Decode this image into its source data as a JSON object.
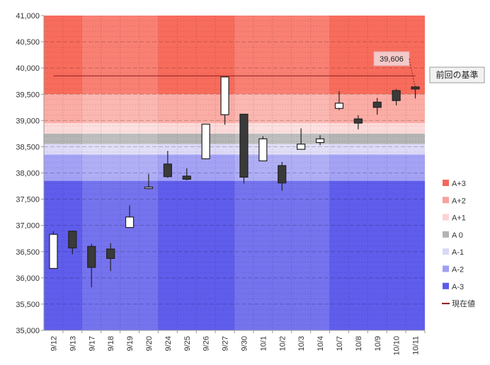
{
  "chart_data": {
    "type": "candlestick",
    "ylim": [
      35000,
      41000
    ],
    "y_ticks": [
      "35,000",
      "35,500",
      "36,000",
      "36,500",
      "37,000",
      "37,500",
      "38,000",
      "38,500",
      "39,000",
      "39,500",
      "40,000",
      "40,500",
      "41,000"
    ],
    "categories": [
      "9/12",
      "9/13",
      "9/17",
      "9/18",
      "9/19",
      "9/20",
      "9/24",
      "9/25",
      "9/26",
      "9/27",
      "9/30",
      "10/1",
      "10/2",
      "10/3",
      "10/4",
      "10/7",
      "10/8",
      "10/9",
      "10/10",
      "10/11"
    ],
    "candles": [
      {
        "open": 36180,
        "high": 36890,
        "low": 36180,
        "close": 36830
      },
      {
        "open": 36890,
        "high": 36890,
        "low": 36450,
        "close": 36570
      },
      {
        "open": 36600,
        "high": 36650,
        "low": 35820,
        "close": 36200
      },
      {
        "open": 36550,
        "high": 36660,
        "low": 36130,
        "close": 36370
      },
      {
        "open": 36960,
        "high": 37380,
        "low": 36960,
        "close": 37160
      },
      {
        "open": 37710,
        "high": 37980,
        "low": 37690,
        "close": 37730
      },
      {
        "open": 38170,
        "high": 38420,
        "low": 37910,
        "close": 37930
      },
      {
        "open": 37940,
        "high": 38090,
        "low": 37860,
        "close": 37880
      },
      {
        "open": 38270,
        "high": 38930,
        "low": 38260,
        "close": 38930
      },
      {
        "open": 39110,
        "high": 39830,
        "low": 38920,
        "close": 39830
      },
      {
        "open": 39120,
        "high": 39120,
        "low": 37800,
        "close": 37920
      },
      {
        "open": 38230,
        "high": 38700,
        "low": 38230,
        "close": 38650
      },
      {
        "open": 38140,
        "high": 38210,
        "low": 37660,
        "close": 37810
      },
      {
        "open": 38450,
        "high": 38850,
        "low": 38450,
        "close": 38550
      },
      {
        "open": 38580,
        "high": 38720,
        "low": 38530,
        "close": 38650
      },
      {
        "open": 39230,
        "high": 39560,
        "low": 39200,
        "close": 39330
      },
      {
        "open": 39030,
        "high": 39100,
        "low": 38830,
        "close": 38950
      },
      {
        "open": 39350,
        "high": 39430,
        "low": 39110,
        "close": 39250
      },
      {
        "open": 39570,
        "high": 39600,
        "low": 39290,
        "close": 39380
      },
      {
        "open": 39640,
        "high": 39660,
        "low": 39420,
        "close": 39600
      }
    ],
    "zones": [
      {
        "name": "A+3",
        "from": 39500,
        "to": 41000,
        "color": "#F86C5C"
      },
      {
        "name": "A+2",
        "from": 38950,
        "to": 39500,
        "color": "#FBACA5"
      },
      {
        "name": "A+1",
        "from": 38750,
        "to": 38950,
        "color": "#FDDADA"
      },
      {
        "name": "A 0",
        "from": 38550,
        "to": 38750,
        "color": "#B5B5B5"
      },
      {
        "name": "A-1",
        "from": 38350,
        "to": 38550,
        "color": "#DCDAF7"
      },
      {
        "name": "A-2",
        "from": 37850,
        "to": 38350,
        "color": "#A3A2F5"
      },
      {
        "name": "A-3",
        "from": 35000,
        "to": 37850,
        "color": "#5F5DEC"
      }
    ],
    "current_value_line": {
      "value": 39850,
      "color": "#8B1A1A"
    },
    "callout": {
      "text": "39,606",
      "value": 39606
    },
    "reference_label": "前回の基準",
    "legend": [
      {
        "label": "A+3",
        "kind": "box",
        "color": "#F4675A"
      },
      {
        "label": "A+2",
        "kind": "box",
        "color": "#F8A19B"
      },
      {
        "label": "A+1",
        "kind": "box",
        "color": "#FBD3D3"
      },
      {
        "label": "A 0",
        "kind": "box",
        "color": "#B3B3B3"
      },
      {
        "label": "A-1",
        "kind": "box",
        "color": "#D9D8F5"
      },
      {
        "label": "A-2",
        "kind": "box",
        "color": "#A09FF2"
      },
      {
        "label": "A-3",
        "kind": "box",
        "color": "#5C5AE9"
      },
      {
        "label": "現在値",
        "kind": "line",
        "color": "#8B1A1A"
      }
    ],
    "week_shading_groups": [
      [
        0,
        1
      ],
      [
        2,
        5
      ],
      [
        6,
        9
      ],
      [
        10,
        14
      ],
      [
        15,
        19
      ]
    ],
    "up_color": "#FFFFFF",
    "down_color": "#3A3A3A"
  }
}
